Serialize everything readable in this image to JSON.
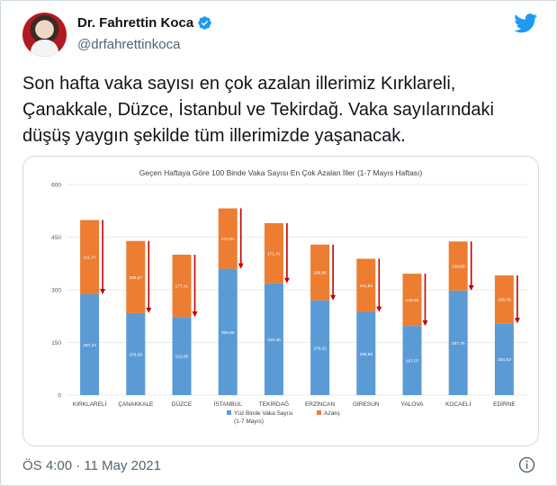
{
  "author": {
    "name": "Dr. Fahrettin Koca",
    "handle": "@drfahrettinkoca",
    "verified": true
  },
  "tweet": {
    "text": "Son hafta vaka sayısı en çok azalan illerimiz Kırklareli,\nÇanakkale, Düzce, İstanbul ve Tekirdağ. Vaka sayılarındaki\ndüşüş yaygın şekilde tüm illerimizde yaşanacak.",
    "timestamp": "ÖS 4:00 · 11 May 2021"
  },
  "icons": {
    "verified": "verified-badge-icon",
    "brand": "twitter-bird-icon",
    "info": "info-icon"
  },
  "colors": {
    "verified": "#1d9bf0",
    "twitter_blue": "#1d9bf0",
    "series_blue": "#5b9bd5",
    "series_orange": "#ed7d31",
    "arrow_red": "#c00000"
  },
  "chart_data": {
    "type": "bar",
    "stacked": true,
    "title": "Geçen Haftaya Göre 100 Binde Vaka Sayısı En Çok Azalan İller (1-7 Mayıs Haftası)",
    "categories": [
      "KIRKLARELİ",
      "ÇANAKKALE",
      "DÜZCE",
      "İSTANBUL",
      "TEKİRDAĞ",
      "ERZİNCAN",
      "GİRESUN",
      "YALOVA",
      "KOCAELİ",
      "EDİRNE"
    ],
    "series": [
      {
        "name": "Yüz Binde Vaka Sayısı (1-7 Mayıs)",
        "color": "#5b9bd5",
        "values": [
          287.23,
          233.59,
          222.66,
          359.99,
          318.48,
          270.02,
          236.9,
          197.07,
          297.76,
          204.53
        ],
        "labels": [
          "287,23",
          "233,59",
          "222,66",
          "359,99",
          "318,48",
          "270,02",
          "236,90",
          "197,07",
          "297,76",
          "204,53"
        ]
      },
      {
        "name": "Azalış",
        "color": "#ed7d31",
        "values": [
          211.47,
          205.57,
          177.41,
          172.01,
          171.41,
          158.88,
          151.54,
          148.88,
          139.89,
          136.35
        ],
        "labels": [
          "211,47",
          "205,57",
          "177,41",
          "172,01",
          "171,41",
          "158,88",
          "151,54",
          "148,88",
          "139,89",
          "136,35"
        ]
      }
    ],
    "ylim": [
      0,
      600
    ],
    "yticks": [
      "0",
      "150",
      "300",
      "450",
      "600"
    ],
    "grid": true,
    "legend": "bottom",
    "annotation": "red downward arrow beside each bar"
  }
}
